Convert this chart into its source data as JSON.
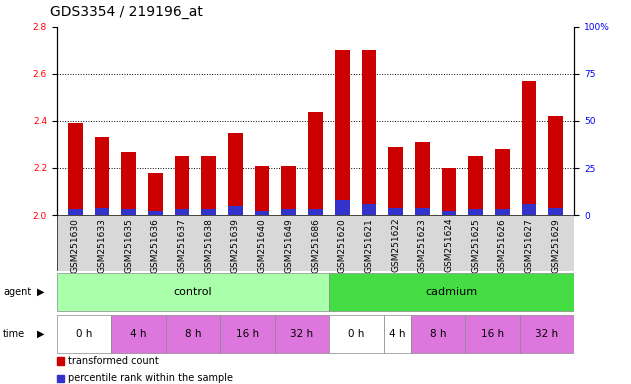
{
  "title": "GDS3354 / 219196_at",
  "samples": [
    "GSM251630",
    "GSM251633",
    "GSM251635",
    "GSM251636",
    "GSM251637",
    "GSM251638",
    "GSM251639",
    "GSM251640",
    "GSM251649",
    "GSM251686",
    "GSM251620",
    "GSM251621",
    "GSM251622",
    "GSM251623",
    "GSM251624",
    "GSM251625",
    "GSM251626",
    "GSM251627",
    "GSM251629"
  ],
  "transformed_count": [
    2.39,
    2.33,
    2.27,
    2.18,
    2.25,
    2.25,
    2.35,
    2.21,
    2.21,
    2.44,
    2.7,
    2.7,
    2.29,
    2.31,
    2.2,
    2.25,
    2.28,
    2.57,
    2.42
  ],
  "percentile_rank": [
    3,
    4,
    3,
    2,
    3,
    3,
    5,
    2,
    3,
    3,
    8,
    6,
    4,
    4,
    2,
    3,
    3,
    6,
    4
  ],
  "ylim_left": [
    2.0,
    2.8
  ],
  "ylim_right": [
    0,
    100
  ],
  "yticks_left": [
    2.0,
    2.2,
    2.4,
    2.6,
    2.8
  ],
  "yticks_right": [
    0,
    25,
    50,
    75,
    100
  ],
  "bar_color_red": "#cc0000",
  "bar_color_blue": "#3333cc",
  "bar_width": 0.55,
  "agent_groups": [
    {
      "label": "control",
      "start": 0,
      "end": 10,
      "color": "#aaffaa"
    },
    {
      "label": "cadmium",
      "start": 10,
      "end": 19,
      "color": "#44dd44"
    }
  ],
  "time_groups": [
    {
      "label": "0 h",
      "start": 0,
      "end": 2,
      "color": "#ffffff"
    },
    {
      "label": "4 h",
      "start": 2,
      "end": 4,
      "color": "#dd77dd"
    },
    {
      "label": "8 h",
      "start": 4,
      "end": 6,
      "color": "#dd77dd"
    },
    {
      "label": "16 h",
      "start": 6,
      "end": 8,
      "color": "#dd77dd"
    },
    {
      "label": "32 h",
      "start": 8,
      "end": 10,
      "color": "#dd77dd"
    },
    {
      "label": "0 h",
      "start": 10,
      "end": 12,
      "color": "#ffffff"
    },
    {
      "label": "4 h",
      "start": 12,
      "end": 13,
      "color": "#ffffff"
    },
    {
      "label": "8 h",
      "start": 13,
      "end": 15,
      "color": "#dd77dd"
    },
    {
      "label": "16 h",
      "start": 15,
      "end": 17,
      "color": "#dd77dd"
    },
    {
      "label": "32 h",
      "start": 17,
      "end": 19,
      "color": "#dd77dd"
    }
  ],
  "legend_items": [
    {
      "label": "transformed count",
      "color": "#cc0000"
    },
    {
      "label": "percentile rank within the sample",
      "color": "#3333cc"
    }
  ],
  "plot_bg": "#ffffff",
  "tick_bg": "#d8d8d8",
  "title_fontsize": 10,
  "tick_fontsize": 6.5,
  "sample_fontsize": 6.5,
  "row_fontsize": 8
}
